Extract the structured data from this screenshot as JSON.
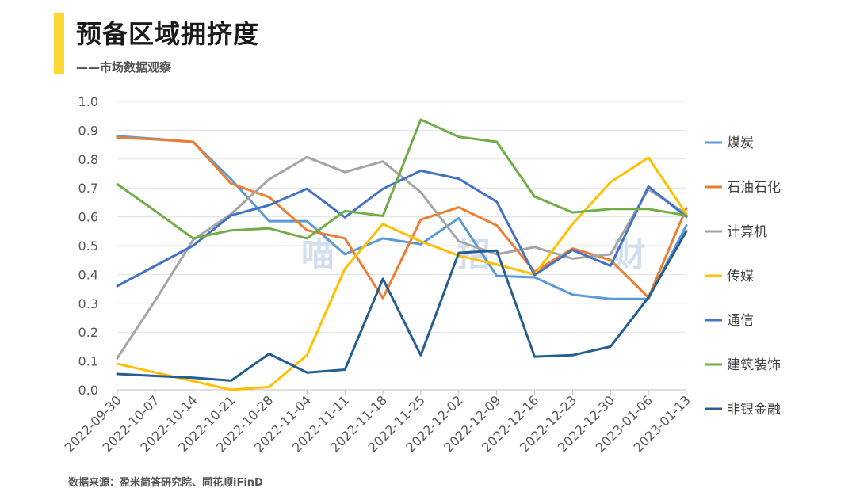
{
  "header": {
    "title": "预备区域拥挤度",
    "subtitle": "——市场数据观察"
  },
  "watermark": "喵 招 财",
  "source": "数据来源：盈米简答研究院、同花顺iFinD",
  "chart_data": {
    "type": "line",
    "x": [
      "2022-09-30",
      "2022-10-07",
      "2022-10-14",
      "2022-10-21",
      "2022-10-28",
      "2022-11-04",
      "2022-11-11",
      "2022-11-18",
      "2022-11-25",
      "2022-12-02",
      "2022-12-09",
      "2022-12-16",
      "2022-12-23",
      "2022-12-30",
      "2023-01-06",
      "2023-01-13"
    ],
    "ylim": [
      0,
      1.0
    ],
    "yticks": [
      "0.0",
      "0.1",
      "0.2",
      "0.3",
      "0.4",
      "0.5",
      "0.6",
      "0.7",
      "0.8",
      "0.9",
      "1.0"
    ],
    "grid": true,
    "legend_position": "right",
    "series": [
      {
        "name": "煤炭",
        "color": "#5b9bd5",
        "values": [
          0.88,
          0.87,
          0.86,
          0.73,
          0.585,
          0.585,
          0.47,
          0.525,
          0.505,
          0.595,
          0.395,
          0.39,
          0.33,
          0.315,
          0.315,
          0.57
        ]
      },
      {
        "name": "石油石化",
        "color": "#ed7d31",
        "values": [
          0.875,
          0.868,
          0.86,
          0.715,
          0.668,
          0.553,
          0.525,
          0.318,
          0.59,
          0.633,
          0.57,
          0.41,
          0.49,
          0.45,
          0.32,
          0.63
        ]
      },
      {
        "name": "计算机",
        "color": "#a5a5a5",
        "values": [
          0.11,
          0.31,
          0.52,
          0.61,
          0.73,
          0.807,
          0.755,
          0.792,
          0.685,
          0.515,
          0.47,
          0.495,
          0.455,
          0.47,
          0.695,
          0.61
        ]
      },
      {
        "name": "传媒",
        "color": "#ffc000",
        "values": [
          0.09,
          0.06,
          0.03,
          0.0,
          0.01,
          0.12,
          0.42,
          0.575,
          0.515,
          0.465,
          0.435,
          0.4,
          0.575,
          0.72,
          0.805,
          0.61
        ]
      },
      {
        "name": "通信",
        "color": "#4472c4",
        "values": [
          0.36,
          0.43,
          0.5,
          0.605,
          0.64,
          0.697,
          0.598,
          0.697,
          0.76,
          0.732,
          0.652,
          0.398,
          0.485,
          0.43,
          0.705,
          0.6
        ]
      },
      {
        "name": "建筑装饰",
        "color": "#70ad47",
        "values": [
          0.713,
          0.62,
          0.525,
          0.553,
          0.56,
          0.525,
          0.62,
          0.603,
          0.937,
          0.877,
          0.86,
          0.67,
          0.615,
          0.627,
          0.627,
          0.605
        ]
      },
      {
        "name": "非银金融",
        "color": "#255e91",
        "values": [
          0.055,
          0.048,
          0.042,
          0.032,
          0.125,
          0.06,
          0.07,
          0.385,
          0.12,
          0.475,
          0.483,
          0.115,
          0.12,
          0.15,
          0.32,
          0.55
        ]
      }
    ]
  }
}
